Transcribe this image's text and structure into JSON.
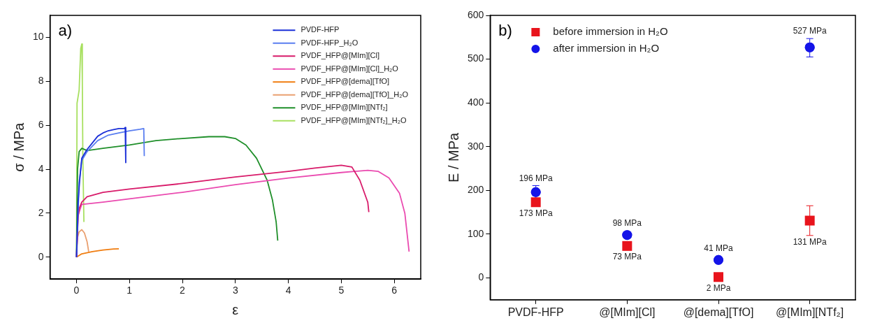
{
  "chart_data": [
    {
      "type": "line",
      "xlabel": "ε",
      "ylabel": "σ / MPa",
      "annotations": [
        "a)"
      ],
      "xlim": [
        -0.5,
        6.5
      ],
      "ylim": [
        -1,
        11
      ],
      "xticks": [
        0,
        1,
        2,
        3,
        4,
        5,
        6
      ],
      "yticks": [
        0,
        2,
        4,
        6,
        8,
        10
      ],
      "grid": false,
      "legend": "top right",
      "marker": "none",
      "line_style": "solid",
      "series": [
        {
          "name": "PVDF-HFP",
          "color": "#1a2fd8",
          "x": [
            0,
            0.03,
            0.06,
            0.1,
            0.2,
            0.3,
            0.4,
            0.5,
            0.6,
            0.7,
            0.8,
            0.9,
            0.92,
            0.93
          ],
          "values": [
            0,
            2.5,
            3.5,
            4.5,
            4.9,
            5.2,
            5.5,
            5.65,
            5.75,
            5.8,
            5.85,
            5.85,
            5.9,
            4.3
          ]
        },
        {
          "name": "PVDF-HFP_H₂O",
          "color": "#5a7ef0",
          "x": [
            0,
            0.05,
            0.1,
            0.2,
            0.4,
            0.6,
            0.8,
            1.0,
            1.2,
            1.27,
            1.28
          ],
          "values": [
            0,
            3.4,
            4.4,
            4.8,
            5.3,
            5.55,
            5.65,
            5.75,
            5.82,
            5.85,
            4.6
          ]
        },
        {
          "name": "PVDF_HFP@[MIm][Cl]",
          "color": "#d81b6a",
          "x": [
            0,
            0.03,
            0.05,
            0.1,
            0.2,
            0.5,
            1,
            2,
            3,
            4,
            4.5,
            5,
            5.2,
            5.35,
            5.5,
            5.52
          ],
          "values": [
            0,
            1.8,
            2.2,
            2.5,
            2.75,
            2.95,
            3.1,
            3.35,
            3.65,
            3.9,
            4.05,
            4.18,
            4.1,
            3.5,
            2.5,
            2.05
          ]
        },
        {
          "name": "PVDF_HFP@[MIm][Cl]_H₂O",
          "color": "#ea4bb0",
          "x": [
            0,
            0.03,
            0.1,
            0.5,
            1,
            2,
            3,
            4,
            5,
            5.5,
            5.7,
            5.9,
            6.1,
            6.2,
            6.28
          ],
          "values": [
            0,
            1.9,
            2.4,
            2.5,
            2.65,
            2.95,
            3.3,
            3.6,
            3.85,
            3.95,
            3.9,
            3.6,
            2.9,
            2,
            0.25
          ]
        },
        {
          "name": "PVDF_HFP@[dema][TfO]",
          "color": "#f07d10",
          "x": [
            0,
            0.1,
            0.3,
            0.5,
            0.7,
            0.8
          ],
          "values": [
            0,
            0.15,
            0.25,
            0.32,
            0.37,
            0.38
          ]
        },
        {
          "name": "PVDF_HFP@[dema][TfO]_H₂O",
          "color": "#eaa070",
          "x": [
            0,
            0.02,
            0.05,
            0.1,
            0.15,
            0.2,
            0.23
          ],
          "values": [
            0,
            0.9,
            1.15,
            1.25,
            1.1,
            0.7,
            0.25
          ]
        },
        {
          "name": "PVDF_HFP@[MIm][NTf₂]",
          "color": "#1f8f2a",
          "x": [
            0,
            0.02,
            0.05,
            0.1,
            0.2,
            0.5,
            1,
            1.5,
            2,
            2.5,
            2.8,
            3.0,
            3.2,
            3.4,
            3.6,
            3.7,
            3.77,
            3.8
          ],
          "values": [
            0,
            4,
            4.8,
            4.95,
            4.85,
            4.95,
            5.1,
            5.3,
            5.4,
            5.48,
            5.48,
            5.4,
            5.1,
            4.5,
            3.5,
            2.6,
            1.6,
            0.75
          ]
        },
        {
          "name": "PVDF_HFP@[MIm][NTf₂]_H₂O",
          "color": "#a8e060",
          "x": [
            0,
            0.01,
            0.05,
            0.08,
            0.1,
            0.11,
            0.12,
            0.14
          ],
          "values": [
            0,
            7,
            7.6,
            9.5,
            9.7,
            8,
            4.5,
            1.6
          ]
        }
      ]
    },
    {
      "type": "scatter",
      "ylabel": "E / MPa",
      "annotations": [
        "b)"
      ],
      "categories": [
        "PVDF-HFP",
        "@[MIm][Cl]",
        "@[dema][TfO]",
        "@[MIm][NTf₂]"
      ],
      "ylim": [
        -50,
        600
      ],
      "yticks": [
        0,
        100,
        200,
        300,
        400,
        500,
        600
      ],
      "grid": false,
      "legend": "top left",
      "series": [
        {
          "name": "before immersion in H₂O",
          "color": "#e8141c",
          "marker": "square",
          "values": [
            173,
            73,
            2,
            131
          ],
          "errors": [
            null,
            null,
            null,
            [
              97,
              165
            ]
          ],
          "value_labels": [
            "173 MPa",
            "73 MPa",
            "2 MPa",
            "131 MPa"
          ]
        },
        {
          "name": "after immersion in H₂O",
          "color": "#1414e8",
          "marker": "circle",
          "values": [
            196,
            98,
            41,
            527
          ],
          "errors": [
            15,
            null,
            null,
            [
              505,
              547
            ]
          ],
          "value_labels": [
            "196 MPa",
            "98 MPa",
            "41 MPa",
            "527 MPa"
          ]
        }
      ]
    }
  ]
}
